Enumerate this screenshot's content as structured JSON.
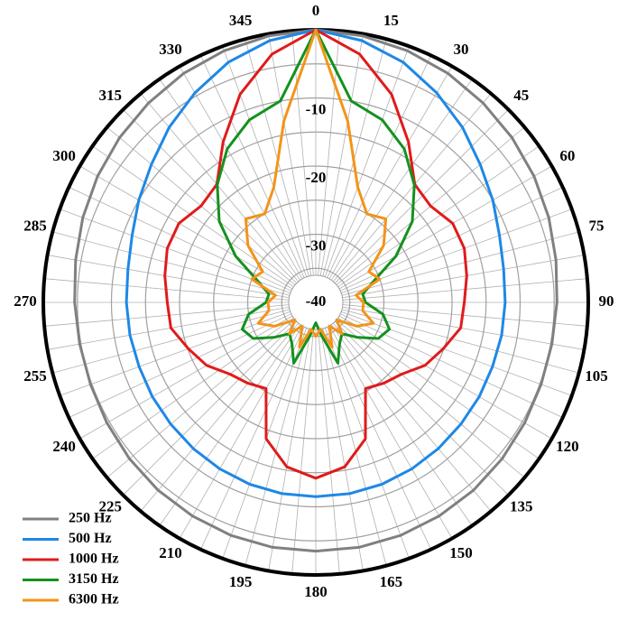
{
  "chart_data": {
    "type": "polar",
    "theta_ticks": [
      0,
      15,
      30,
      45,
      60,
      75,
      90,
      105,
      120,
      135,
      150,
      165,
      180,
      195,
      210,
      225,
      240,
      255,
      270,
      285,
      300,
      315,
      330,
      345
    ],
    "angles": [
      0,
      10,
      20,
      30,
      40,
      50,
      60,
      70,
      80,
      90,
      100,
      110,
      120,
      130,
      140,
      150,
      160,
      170,
      180,
      190,
      200,
      210,
      220,
      230,
      240,
      250,
      260,
      270,
      280,
      290,
      300,
      310,
      320,
      330,
      340,
      350
    ],
    "rlim": [
      -40,
      0
    ],
    "rticks": [
      -40,
      -30,
      -20,
      -10
    ],
    "minor_rticks": [
      -35,
      -25,
      -15,
      -5
    ],
    "radial_grid_step": 5,
    "grid": true,
    "series": [
      {
        "name": "250 Hz",
        "color": "#808080",
        "values": [
          0,
          -0.3,
          -0.7,
          -1.2,
          -1.8,
          -2.4,
          -3,
          -3.6,
          -4.2,
          -4.6,
          -4.8,
          -4.8,
          -4.6,
          -4.3,
          -4,
          -3.8,
          -3.6,
          -3.5,
          -3.5,
          -3.5,
          -3.6,
          -3.8,
          -4,
          -4.3,
          -4.6,
          -4.8,
          -4.8,
          -4.6,
          -4.2,
          -3.6,
          -3,
          -2.4,
          -1.8,
          -1.2,
          -0.7,
          -0.3
        ]
      },
      {
        "name": "500 Hz",
        "color": "#1e88e5",
        "values": [
          0,
          -1,
          -2.5,
          -4.5,
          -6.5,
          -8.5,
          -10,
          -11.3,
          -12,
          -12.2,
          -12.3,
          -12.4,
          -12.3,
          -12.2,
          -12,
          -11.8,
          -11.6,
          -11.5,
          -11.5,
          -11.5,
          -11.6,
          -11.8,
          -12,
          -12.2,
          -12.3,
          -12.4,
          -12.3,
          -12.2,
          -12,
          -11.3,
          -10,
          -8.5,
          -6.5,
          -4.5,
          -2.5,
          -1
        ]
      },
      {
        "name": "1000 Hz",
        "color": "#e01b1b",
        "values": [
          0,
          -3,
          -7.5,
          -12.8,
          -17.4,
          -18,
          -16.8,
          -16.8,
          -17.5,
          -18.2,
          -18.4,
          -20.1,
          -21.5,
          -23.6,
          -24.5,
          -25.4,
          -18.7,
          -15.5,
          -14.2,
          -15.5,
          -18.7,
          -25.4,
          -24.5,
          -23.6,
          -21.5,
          -20.1,
          -18.4,
          -18.2,
          -17.5,
          -16.8,
          -16.8,
          -18,
          -17.4,
          -12.8,
          -7.5,
          -3
        ]
      },
      {
        "name": "3150 Hz",
        "color": "#14911e",
        "values": [
          0,
          -10,
          -11.5,
          -14,
          -17.5,
          -21.5,
          -26.4,
          -31,
          -33,
          -32.7,
          -30,
          -28.5,
          -29.4,
          -32,
          -34,
          -33,
          -30.5,
          -35,
          -37,
          -35,
          -30.5,
          -33,
          -34,
          -32,
          -29.4,
          -28.5,
          -30,
          -32.7,
          -33,
          -31,
          -26.4,
          -21.5,
          -17.5,
          -14,
          -11.5,
          -10
        ]
      },
      {
        "name": "6300 Hz",
        "color": "#f39419",
        "values": [
          0,
          -13,
          -22,
          -25,
          -24,
          -27,
          -31,
          -30,
          -34,
          -33,
          -33,
          -31,
          -33,
          -36,
          -34,
          -36,
          -33,
          -36,
          -35,
          -36,
          -33,
          -36,
          -34,
          -36,
          -33,
          -31,
          -33,
          -33,
          -34,
          -30,
          -31,
          -27,
          -24,
          -25,
          -22,
          -13
        ]
      }
    ]
  }
}
